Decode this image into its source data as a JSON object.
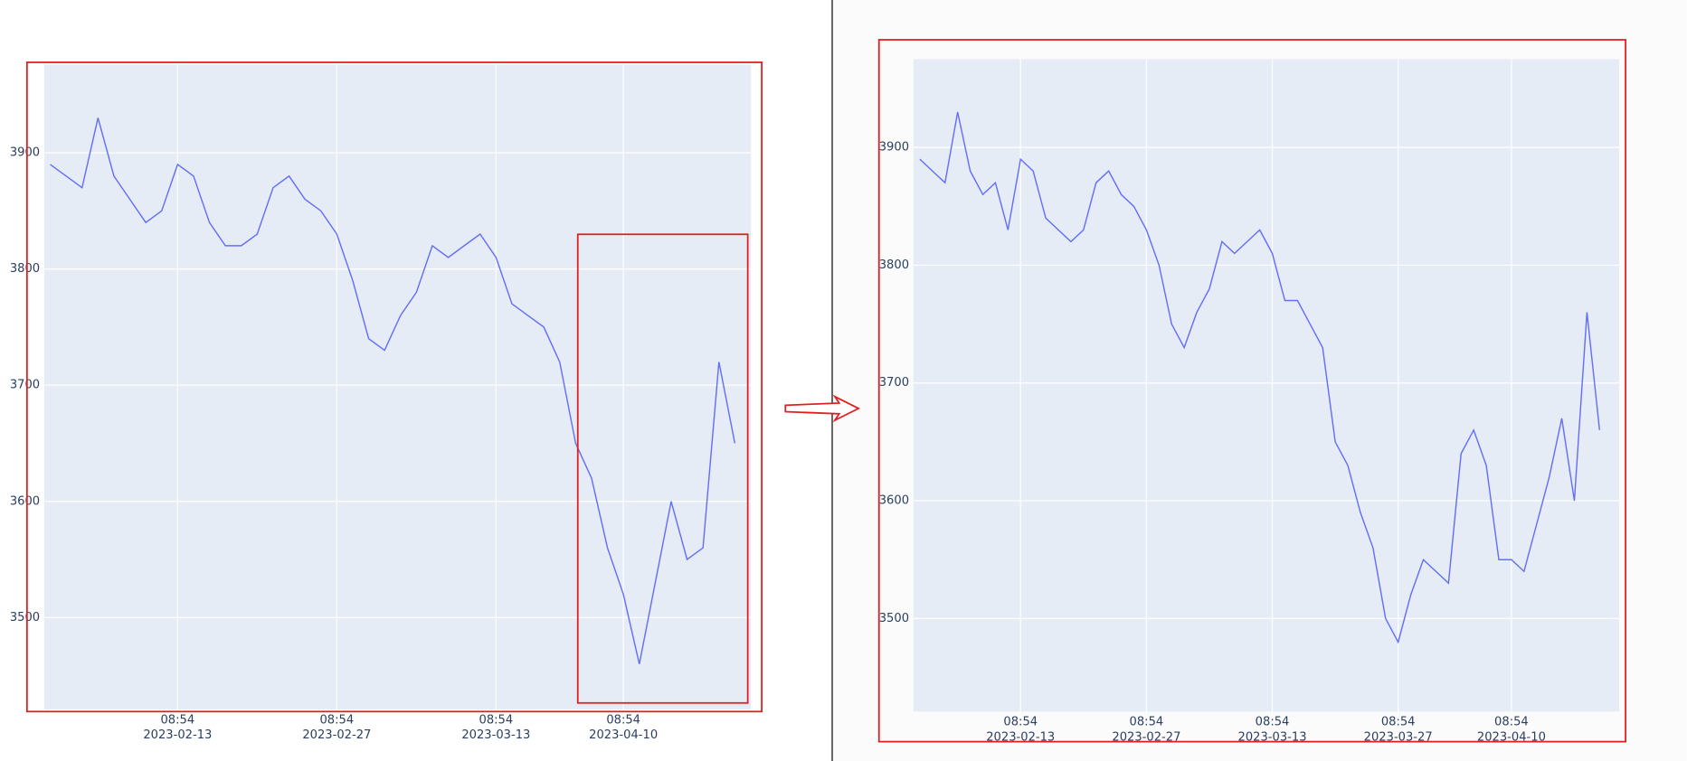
{
  "chart_data": [
    {
      "type": "line",
      "color": "#636efa",
      "grid": true,
      "categories": [
        "2023-02-01",
        "2023-02-02",
        "2023-02-03",
        "2023-02-06",
        "2023-02-07",
        "2023-02-08",
        "2023-02-09",
        "2023-02-10",
        "2023-02-13",
        "2023-02-14",
        "2023-02-15",
        "2023-02-16",
        "2023-02-17",
        "2023-02-20",
        "2023-02-21",
        "2023-02-22",
        "2023-02-23",
        "2023-02-24",
        "2023-02-27",
        "2023-02-28",
        "2023-03-01",
        "2023-03-02",
        "2023-03-03",
        "2023-03-06",
        "2023-03-07",
        "2023-03-08",
        "2023-03-09",
        "2023-03-10",
        "2023-03-13",
        "2023-03-14",
        "2023-03-15",
        "2023-03-16",
        "2023-03-17",
        "2023-03-20",
        "2023-03-21",
        "2023-03-22",
        "2023-04-10",
        "2023-04-11",
        "2023-04-12",
        "2023-04-13",
        "2023-04-14",
        "2023-04-17",
        "2023-04-18",
        "2023-04-19"
      ],
      "values": [
        3890,
        3880,
        3870,
        3930,
        3880,
        3860,
        3840,
        3850,
        3890,
        3880,
        3840,
        3820,
        3820,
        3830,
        3870,
        3880,
        3860,
        3850,
        3830,
        3790,
        3740,
        3730,
        3760,
        3780,
        3820,
        3810,
        3820,
        3830,
        3810,
        3770,
        3760,
        3750,
        3720,
        3650,
        3620,
        3560,
        3520,
        3460,
        3530,
        3600,
        3550,
        3560,
        3720,
        3650
      ],
      "ylim": [
        3421,
        3976
      ],
      "yticks": [
        3500,
        3600,
        3700,
        3800,
        3900
      ],
      "xticks": [
        {
          "value": "2023-02-13",
          "label": [
            "08:54",
            "2023-02-13"
          ]
        },
        {
          "value": "2023-02-27",
          "label": [
            "08:54",
            "2023-02-27"
          ]
        },
        {
          "value": "2023-03-13",
          "label": [
            "08:54",
            "2023-03-13"
          ]
        },
        {
          "value": "2023-04-10",
          "label": [
            "08:54",
            "2023-04-10"
          ]
        }
      ]
    },
    {
      "type": "line",
      "color": "#636efa",
      "grid": true,
      "categories": [
        "2023-02-01",
        "2023-02-02",
        "2023-02-03",
        "2023-02-06",
        "2023-02-07",
        "2023-02-08",
        "2023-02-09",
        "2023-02-10",
        "2023-02-13",
        "2023-02-14",
        "2023-02-15",
        "2023-02-16",
        "2023-02-17",
        "2023-02-20",
        "2023-02-21",
        "2023-02-22",
        "2023-02-23",
        "2023-02-24",
        "2023-02-27",
        "2023-02-28",
        "2023-03-01",
        "2023-03-02",
        "2023-03-03",
        "2023-03-06",
        "2023-03-07",
        "2023-03-08",
        "2023-03-09",
        "2023-03-10",
        "2023-03-13",
        "2023-03-14",
        "2023-03-15",
        "2023-03-16",
        "2023-03-17",
        "2023-03-20",
        "2023-03-21",
        "2023-03-22",
        "2023-03-23",
        "2023-03-24",
        "2023-03-27",
        "2023-03-28",
        "2023-03-29",
        "2023-03-30",
        "2023-03-31",
        "2023-04-03",
        "2023-04-04",
        "2023-04-06",
        "2023-04-07",
        "2023-04-10",
        "2023-04-11",
        "2023-04-12",
        "2023-04-13",
        "2023-04-14",
        "2023-04-17",
        "2023-04-18",
        "2023-04-19"
      ],
      "values": [
        3890,
        3880,
        3870,
        3930,
        3880,
        3860,
        3870,
        3830,
        3890,
        3880,
        3840,
        3830,
        3820,
        3830,
        3870,
        3880,
        3860,
        3850,
        3830,
        3800,
        3750,
        3730,
        3760,
        3780,
        3820,
        3810,
        3820,
        3830,
        3810,
        3770,
        3770,
        3750,
        3730,
        3650,
        3630,
        3590,
        3560,
        3500,
        3480,
        3520,
        3550,
        3540,
        3530,
        3640,
        3660,
        3630,
        3550,
        3550,
        3540,
        3580,
        3620,
        3670,
        3600,
        3760,
        3660
      ],
      "ylim": [
        3421,
        3975
      ],
      "yticks": [
        3500,
        3600,
        3700,
        3800,
        3900
      ],
      "xticks": [
        {
          "value": "2023-02-13",
          "label": [
            "08:54",
            "2023-02-13"
          ]
        },
        {
          "value": "2023-02-27",
          "label": [
            "08:54",
            "2023-02-27"
          ]
        },
        {
          "value": "2023-03-13",
          "label": [
            "08:54",
            "2023-03-13"
          ]
        },
        {
          "value": "2023-03-27",
          "label": [
            "08:54",
            "2023-03-27"
          ]
        },
        {
          "value": "2023-04-10",
          "label": [
            "08:54",
            "2023-04-10"
          ]
        }
      ]
    }
  ]
}
